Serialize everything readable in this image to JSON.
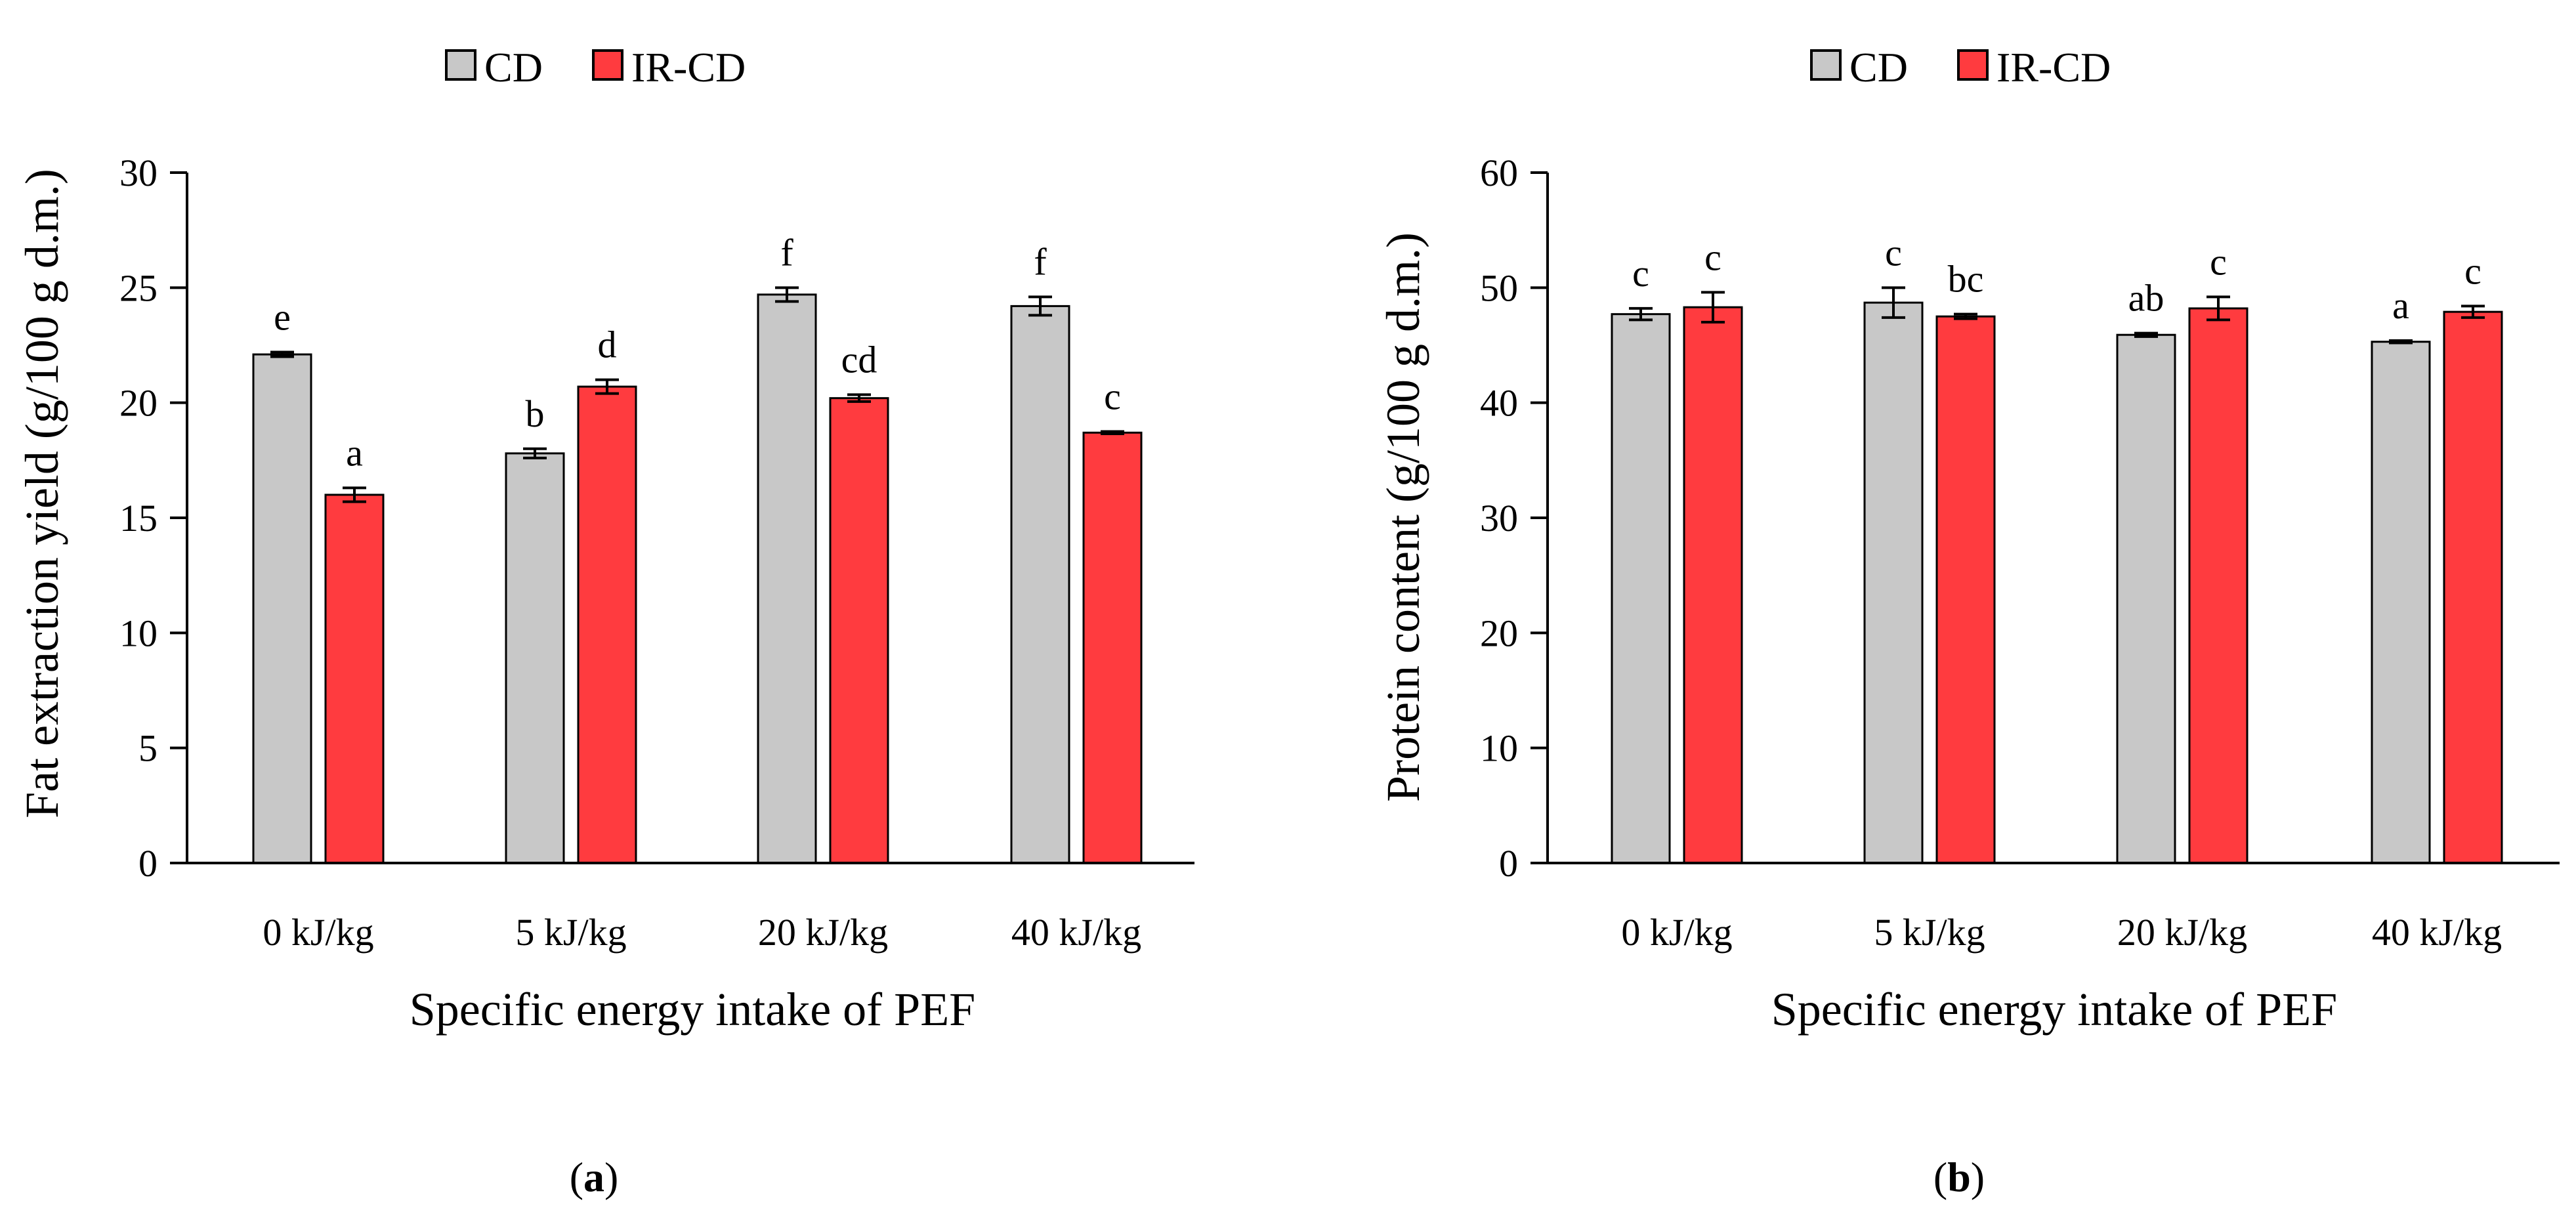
{
  "series_colors": {
    "CD": "#c8c8c8",
    "IR-CD": "#ff3b3f"
  },
  "chart_data": [
    {
      "type": "bar",
      "categories": [
        "0 kJ/kg",
        "5 kJ/kg",
        "20 kJ/kg",
        "40 kJ/kg"
      ],
      "series": [
        {
          "name": "CD",
          "values": [
            22.1,
            17.8,
            24.7,
            24.2
          ],
          "errors": [
            0.1,
            0.2,
            0.3,
            0.4
          ],
          "letters": [
            "e",
            "b",
            "f",
            "f"
          ]
        },
        {
          "name": "IR-CD",
          "values": [
            16.0,
            20.7,
            20.2,
            18.7
          ],
          "errors": [
            0.3,
            0.3,
            0.15,
            0.05
          ],
          "letters": [
            "a",
            "d",
            "cd",
            "c"
          ]
        }
      ],
      "xlabel": "Specific energy intake of PEF",
      "ylabel": "Fat extraction yield (g/100 g d.m.)",
      "ylim": [
        0,
        30
      ],
      "yticks": [
        0,
        5,
        10,
        15,
        20,
        25,
        30
      ],
      "caption_letter": "a",
      "legend": "top-center"
    },
    {
      "type": "bar",
      "categories": [
        "0 kJ/kg",
        "5 kJ/kg",
        "20 kJ/kg",
        "40 kJ/kg"
      ],
      "series": [
        {
          "name": "CD",
          "values": [
            47.7,
            48.7,
            45.9,
            45.3
          ],
          "errors": [
            0.5,
            1.3,
            0.15,
            0.1
          ],
          "letters": [
            "c",
            "c",
            "ab",
            "a"
          ]
        },
        {
          "name": "IR-CD",
          "values": [
            48.3,
            47.5,
            48.2,
            47.9
          ],
          "errors": [
            1.3,
            0.2,
            1.0,
            0.5
          ],
          "letters": [
            "c",
            "bc",
            "c",
            "c"
          ]
        }
      ],
      "xlabel": "Specific energy intake of PEF",
      "ylabel": "Protein content (g/100 g d.m.)",
      "ylim": [
        0,
        60
      ],
      "yticks": [
        0,
        10,
        20,
        30,
        40,
        50,
        60
      ],
      "caption_letter": "b",
      "legend": "top-center"
    }
  ]
}
